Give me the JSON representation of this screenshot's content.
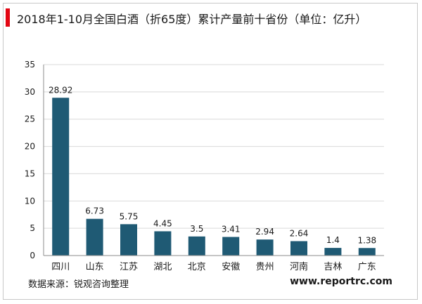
{
  "header": {
    "title": "2018年1-10月全国白酒（折65度）累计产量前十省份（单位：亿升）",
    "accent_color": "#e30613"
  },
  "footer": {
    "source": "数据来源：锐观咨询整理",
    "brand": "www.reportrc.com"
  },
  "chart_data": {
    "type": "bar",
    "title": "2018年1-10月全国白酒（折65度）累计产量前十省份（单位：亿升）",
    "categories": [
      "四川",
      "山东",
      "江苏",
      "湖北",
      "北京",
      "安徽",
      "贵州",
      "河南",
      "吉林",
      "广东"
    ],
    "values": [
      28.92,
      6.73,
      5.75,
      4.45,
      3.5,
      3.41,
      2.94,
      2.64,
      1.4,
      1.38
    ],
    "value_labels": [
      "28.92",
      "6.73",
      "5.75",
      "4.45",
      "3.5",
      "3.41",
      "2.94",
      "2.64",
      "1.4",
      "1.38"
    ],
    "yticks": [
      "0",
      "5",
      "10",
      "15",
      "20",
      "25",
      "30",
      "35"
    ],
    "ylim": [
      0,
      35
    ],
    "xlabel": "",
    "ylabel": "",
    "grid": true,
    "bar_color": "#1f5a74",
    "grid_color": "#d9d9d9"
  }
}
